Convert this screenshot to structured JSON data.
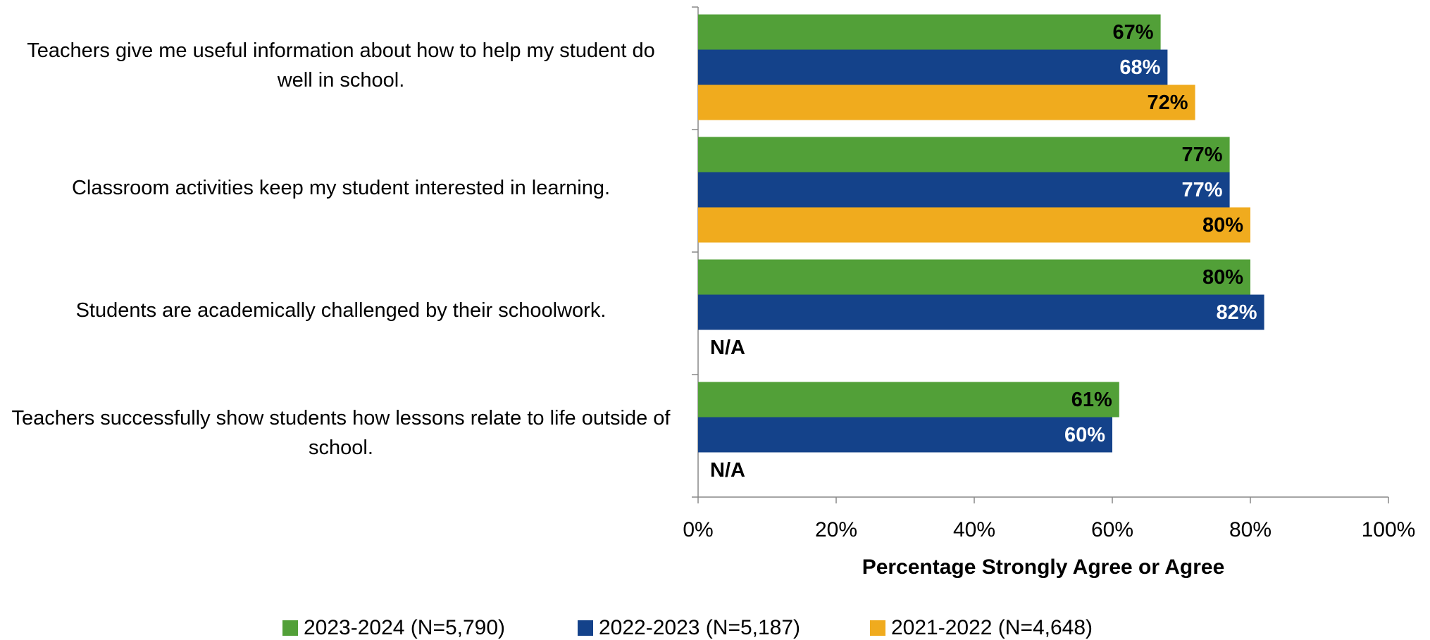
{
  "chart_data": {
    "type": "bar",
    "orientation": "horizontal",
    "x_label": "Percentage Strongly Agree or Agree",
    "categories": [
      "Teachers give me useful information about how to help my student do well in school.",
      "Classroom activities keep my student interested in learning.",
      "Students are academically challenged by their schoolwork.",
      "Teachers successfully show students how lessons relate to life outside of school."
    ],
    "series": [
      {
        "name": "2023-2024 (N=5,790)",
        "color": "#52a038",
        "label_color": "#000000",
        "values": [
          67,
          77,
          80,
          61
        ],
        "value_labels": [
          "67%",
          "77%",
          "80%",
          "61%"
        ]
      },
      {
        "name": "2022-2023 (N=5,187)",
        "color": "#14428a",
        "label_color": "#ffffff",
        "values": [
          68,
          77,
          82,
          60
        ],
        "value_labels": [
          "68%",
          "77%",
          "82%",
          "60%"
        ]
      },
      {
        "name": "2021-2022 (N=4,648)",
        "color": "#f0ab1e",
        "label_color": "#000000",
        "values": [
          72,
          80,
          null,
          null
        ],
        "value_labels": [
          "72%",
          "80%",
          "N/A",
          "N/A"
        ]
      }
    ],
    "xlim": [
      0,
      100
    ],
    "xticks": [
      {
        "value": 0,
        "label": "0%"
      },
      {
        "value": 20,
        "label": "20%"
      },
      {
        "value": 40,
        "label": "40%"
      },
      {
        "value": 60,
        "label": "60%"
      },
      {
        "value": 80,
        "label": "80%"
      },
      {
        "value": 100,
        "label": "100%"
      }
    ],
    "legend": "bottom",
    "grid": false
  }
}
